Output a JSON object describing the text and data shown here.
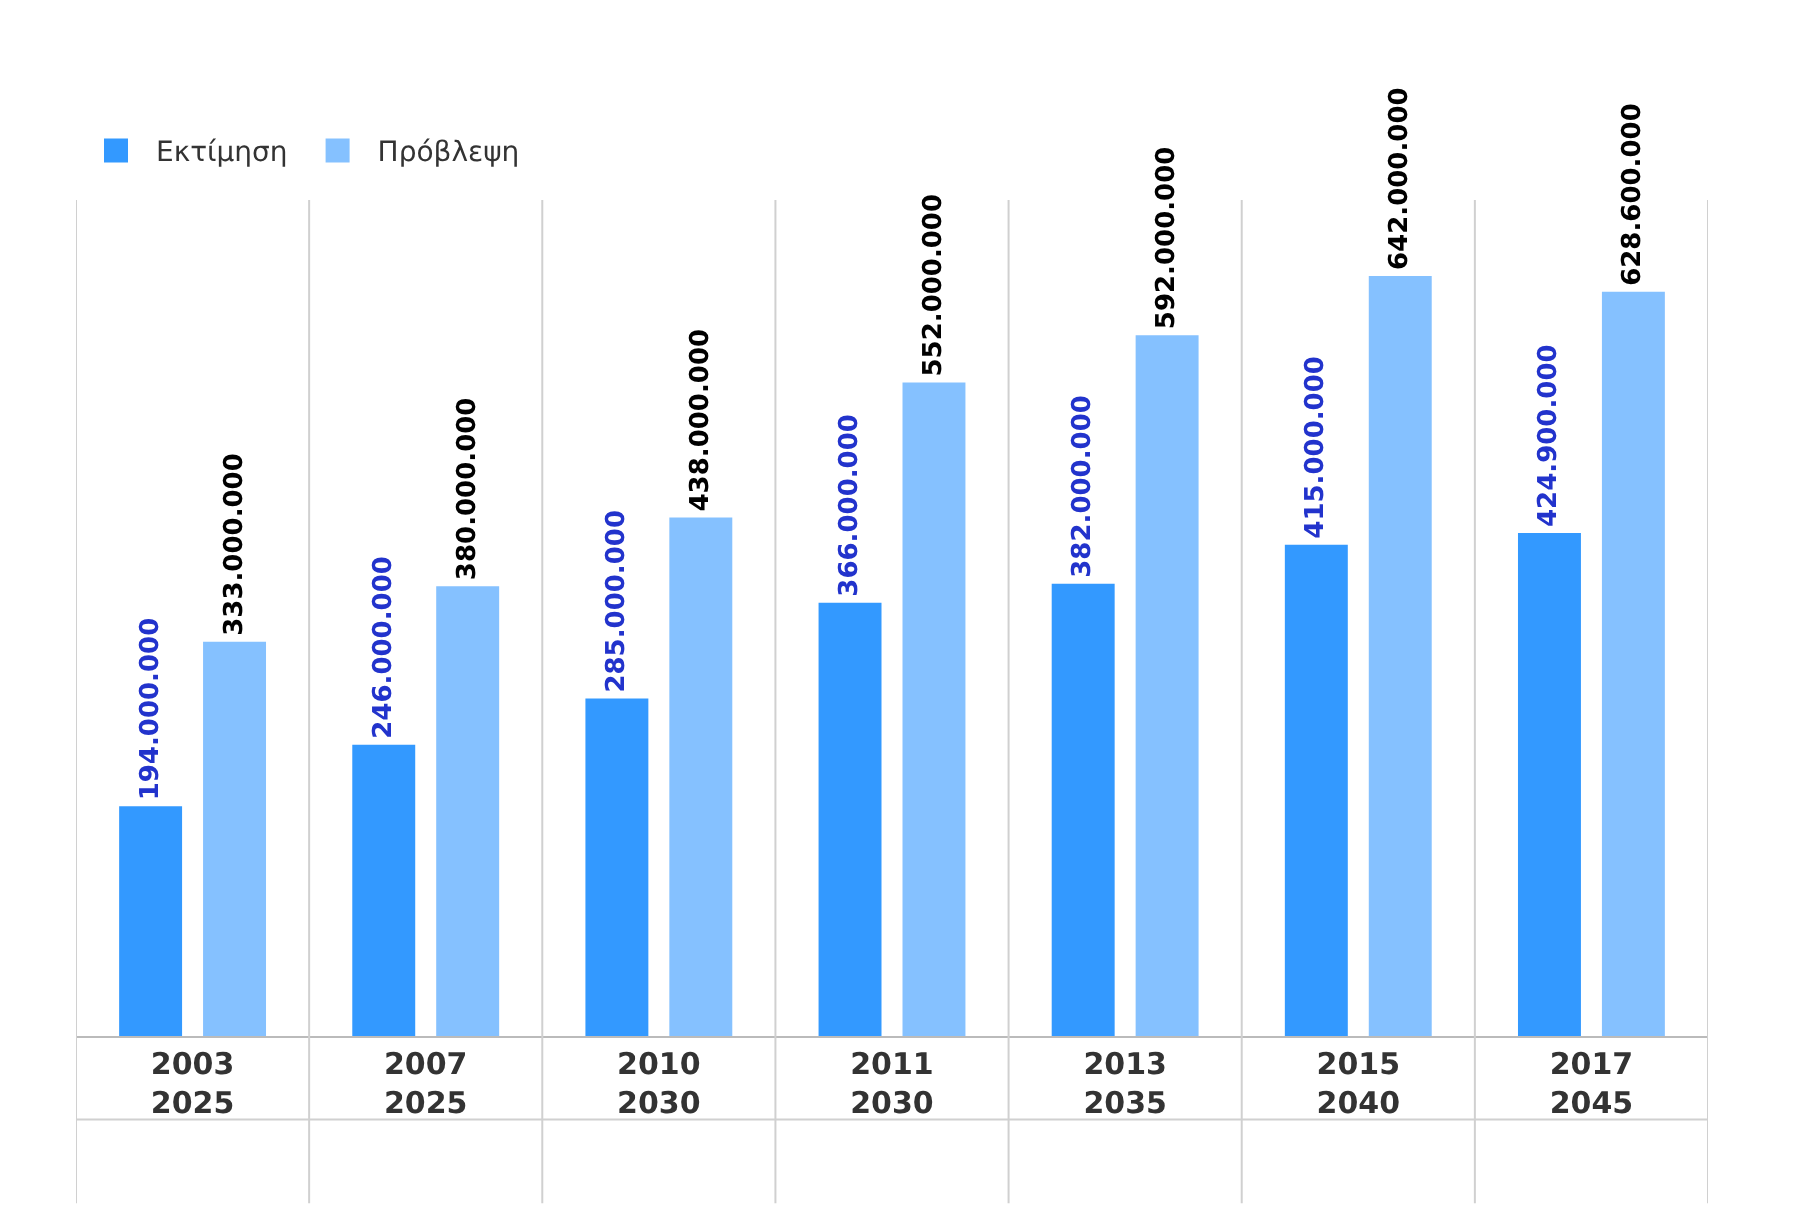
{
  "chart_data": {
    "type": "bar",
    "categories": [
      "2003\n2025",
      "2007\n2025",
      "2010\n2030",
      "2011\n2030",
      "2013\n2035",
      "2015\n2040",
      "2017\n2045"
    ],
    "series": [
      {
        "name": "Εκτίμηση",
        "color": "#3399ff",
        "values": [
          194000000,
          246000000,
          285000000,
          366000000,
          382000000,
          415000000,
          424900000
        ],
        "value_labels": [
          "194.000.000",
          "246.000.000",
          "285.000.000",
          "366.000.000",
          "382.000.000",
          "415.000.000",
          "424.900.000"
        ]
      },
      {
        "name": "Πρόβλεψη",
        "color": "#85c1ff",
        "values": [
          333000000,
          380000000,
          438000000,
          552000000,
          592000000,
          642000000,
          628600000
        ],
        "value_labels": [
          "333.000.000",
          "380.000.000",
          "438.000.000",
          "552.000.000",
          "592.000.000",
          "642.000.000",
          "628.600.000"
        ]
      }
    ],
    "grid": "x",
    "legend": "top left"
  }
}
